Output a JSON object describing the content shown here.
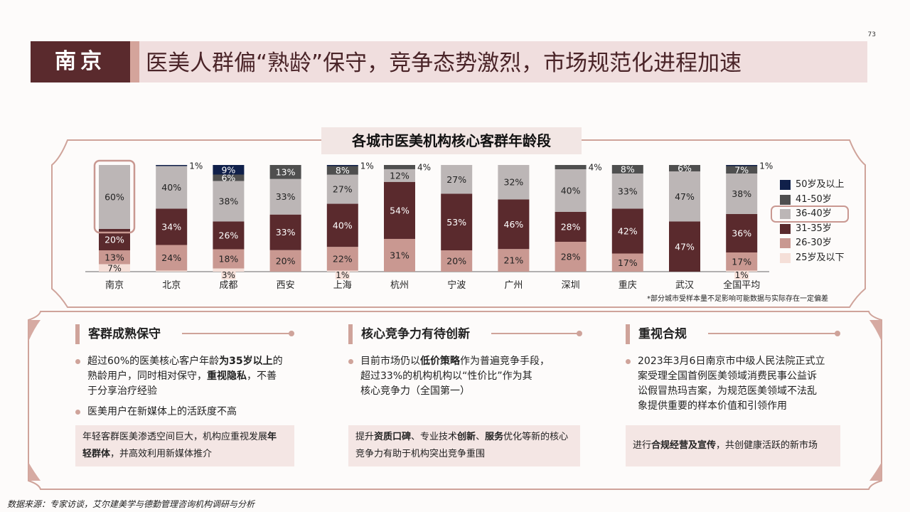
{
  "page_number": "73",
  "header": {
    "city_tag": "南京",
    "title": "医美人群偏“熟龄”保守，竞争态势激烈，市场规范化进程加速"
  },
  "chart": {
    "title": "各城市医美机构核心客群年龄段",
    "footnote": "*部分城市受样本量不足影响可能数据与实际存在一定偏差"
  },
  "chart_data": {
    "type": "bar",
    "stacked": true,
    "percent_stacked": true,
    "categories": [
      "南京",
      "北京",
      "成都",
      "西安",
      "上海",
      "杭州",
      "宁波",
      "广州",
      "深圳",
      "重庆",
      "武汉",
      "全国平均"
    ],
    "series": [
      {
        "name": "25岁及以下",
        "color": "#f5dfd8",
        "values": [
          7,
          1,
          3,
          0,
          1,
          0,
          0,
          0,
          0,
          0,
          0,
          1
        ],
        "labels": [
          "7%",
          "",
          "3%",
          "",
          "1%",
          "",
          "",
          "",
          "",
          "",
          "",
          "1%"
        ]
      },
      {
        "name": "26-30岁",
        "color": "#c99891",
        "values": [
          13,
          24,
          18,
          20,
          22,
          31,
          20,
          21,
          28,
          17,
          0,
          17
        ],
        "labels": [
          "13%",
          "24%",
          "18%",
          "20%",
          "22%",
          "31%",
          "20%",
          "21%",
          "28%",
          "17%",
          "",
          "17%"
        ]
      },
      {
        "name": "31-35岁",
        "color": "#5a2a2d",
        "values": [
          20,
          34,
          26,
          33,
          40,
          54,
          53,
          46,
          28,
          42,
          47,
          36
        ],
        "labels": [
          "20%",
          "34%",
          "26%",
          "33%",
          "40%",
          "54%",
          "53%",
          "46%",
          "28%",
          "42%",
          "47%",
          "36%"
        ]
      },
      {
        "name": "36-40岁",
        "color": "#bcb6b6",
        "values": [
          60,
          40,
          38,
          33,
          27,
          12,
          27,
          32,
          40,
          33,
          47,
          38
        ],
        "labels": [
          "60%",
          "40%",
          "38%",
          "33%",
          "27%",
          "12%",
          "27%",
          "32%",
          "40%",
          "33%",
          "47%",
          "38%"
        ]
      },
      {
        "name": "41-50岁",
        "color": "#4f4f4f",
        "values": [
          0,
          0,
          6,
          13,
          8,
          4,
          0,
          0,
          4,
          8,
          6,
          7
        ],
        "labels": [
          "",
          "",
          "6%",
          "13%",
          "8%",
          "4%",
          "",
          "",
          "4%",
          "8%",
          "6%",
          "7%"
        ]
      },
      {
        "name": "50岁及以上",
        "color": "#10204a",
        "values": [
          0,
          1,
          9,
          0,
          1,
          0,
          0,
          0,
          0,
          0,
          0,
          1
        ],
        "labels": [
          "",
          "1%",
          "9%",
          "",
          "1%",
          "",
          "",
          "",
          "",
          "",
          "",
          "1%"
        ]
      }
    ],
    "legend_order": [
      "50岁及以上",
      "41-50岁",
      "36-40岁",
      "31-35岁",
      "26-30岁",
      "25岁及以下"
    ],
    "highlight": {
      "category": "南京",
      "series": "36-40岁"
    }
  },
  "sections": [
    {
      "title": "客群成熟保守",
      "bullets": [
        [
          {
            "t": "超过60%的医美核心客户年龄"
          },
          {
            "t": "为35岁以上",
            "b": true
          },
          {
            "t": "的"
          },
          {
            "br": true
          },
          {
            "t": "熟龄用户，同时相对保守，"
          },
          {
            "t": "重视隐私",
            "b": true
          },
          {
            "t": "，不善"
          },
          {
            "br": true
          },
          {
            "t": "于分享治疗经验"
          }
        ],
        [
          {
            "t": "医美用户在新媒体上的活跃度不高"
          }
        ]
      ],
      "callout": [
        {
          "t": "年轻客群医美渗透空间巨大，机构应重视发展"
        },
        {
          "t": "年",
          "b": true
        },
        {
          "br": true
        },
        {
          "t": "轻群体",
          "b": true
        },
        {
          "t": "，并高效利用新媒体推介"
        }
      ]
    },
    {
      "title": "核心竞争力有待创新",
      "bullets": [
        [
          {
            "t": "目前市场仍以"
          },
          {
            "t": "低价策略",
            "b": true
          },
          {
            "t": "作为普遍竞争手段，"
          },
          {
            "br": true
          },
          {
            "t": "超过33%的机构机构以“性价比”作为其"
          },
          {
            "br": true
          },
          {
            "t": "核心竞争力（全国第一）"
          }
        ]
      ],
      "callout": [
        {
          "t": "提升"
        },
        {
          "t": "资质口碑",
          "b": true
        },
        {
          "t": "、专业技术"
        },
        {
          "t": "创新",
          "b": true
        },
        {
          "t": "、"
        },
        {
          "t": "服务",
          "b": true
        },
        {
          "t": "优化等新的核心"
        },
        {
          "br": true
        },
        {
          "t": "竞争力有助于机构突出竞争重围"
        }
      ]
    },
    {
      "title": "重视合规",
      "bullets": [
        [
          {
            "t": "2023年3月6日南京市中级人民法院正式立"
          },
          {
            "br": true
          },
          {
            "t": "案受理全国首例医美领域消费民事公益诉"
          },
          {
            "br": true
          },
          {
            "t": "讼假冒热玛吉案，为规范医美领域不法乱"
          },
          {
            "br": true
          },
          {
            "t": "象提供重要的样本价值和引领作用"
          }
        ]
      ],
      "callout": [
        {
          "t": "进行"
        },
        {
          "t": "合规经营及宣传",
          "b": true
        },
        {
          "t": "，共创健康活跃的新市场"
        }
      ]
    }
  ],
  "source": "数据来源：专家访谈，艾尔建美学与德勤管理咨询机构调研与分析"
}
